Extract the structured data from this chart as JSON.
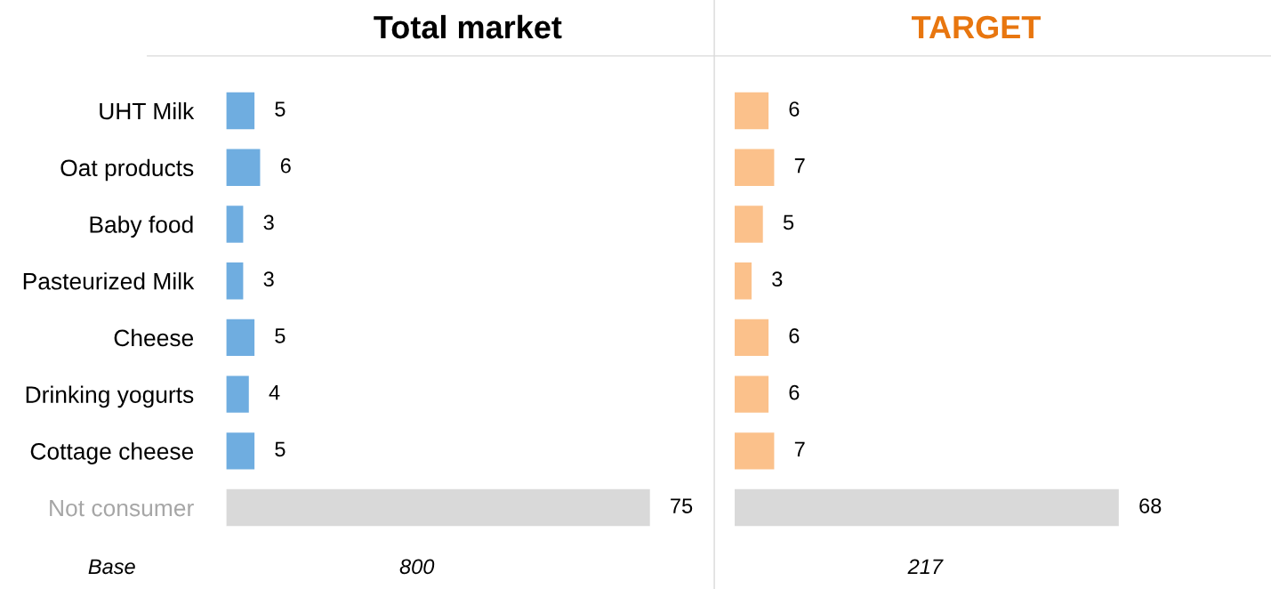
{
  "chart_data": [
    {
      "type": "bar",
      "orientation": "horizontal",
      "title": "Total market",
      "categories": [
        "UHT Milk",
        "Oat products",
        "Baby food",
        "Pasteurized Milk",
        "Cheese",
        "Drinking yogurts",
        "Cottage cheese",
        "Not consumer"
      ],
      "values": [
        5,
        6,
        3,
        3,
        5,
        4,
        5,
        75
      ],
      "colors": [
        "#6fade0",
        "#6fade0",
        "#6fade0",
        "#6fade0",
        "#6fade0",
        "#6fade0",
        "#6fade0",
        "#d9d9d9"
      ],
      "data_labels": true,
      "tick_labels": "y",
      "annotations": [
        "Base",
        "800"
      ]
    },
    {
      "type": "bar",
      "orientation": "horizontal",
      "title": "TARGET",
      "categories": [
        null,
        null,
        null,
        null,
        null,
        null,
        null,
        null
      ],
      "values": [
        6,
        7,
        5,
        3,
        6,
        6,
        7,
        68
      ],
      "colors": [
        "#fbc18b",
        "#fbc18b",
        "#fbc18b",
        "#fbc18b",
        "#fbc18b",
        "#fbc18b",
        "#fbc18b",
        "#d9d9d9"
      ],
      "data_labels": true,
      "tick_labels": false,
      "annotations": [
        "217"
      ]
    }
  ]
}
